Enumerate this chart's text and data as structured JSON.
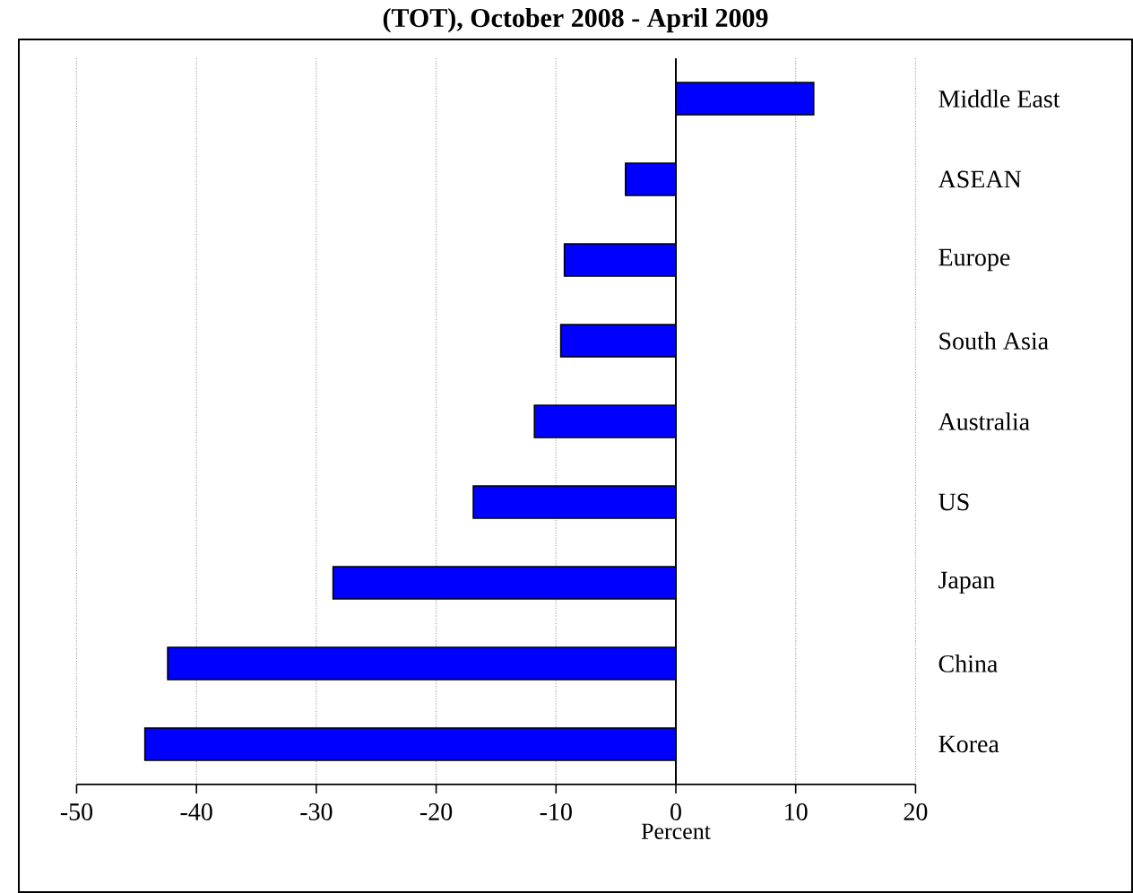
{
  "chart_data": {
    "type": "bar",
    "orientation": "horizontal",
    "title": "(TOT), October 2008 - April 2009",
    "xlabel": "Percent",
    "categories": [
      "Middle East",
      "ASEAN",
      "Europe",
      "South Asia",
      "Australia",
      "US",
      "Japan",
      "China",
      "Korea"
    ],
    "values": [
      11.5,
      -4.2,
      -9.3,
      -9.6,
      -11.8,
      -16.9,
      -28.6,
      -42.4,
      -44.3
    ],
    "color": "#0000ff",
    "xlim": [
      -50,
      20
    ],
    "xticks": [
      -50,
      -40,
      -30,
      -20,
      -10,
      0,
      10,
      20
    ],
    "grid": "x"
  }
}
